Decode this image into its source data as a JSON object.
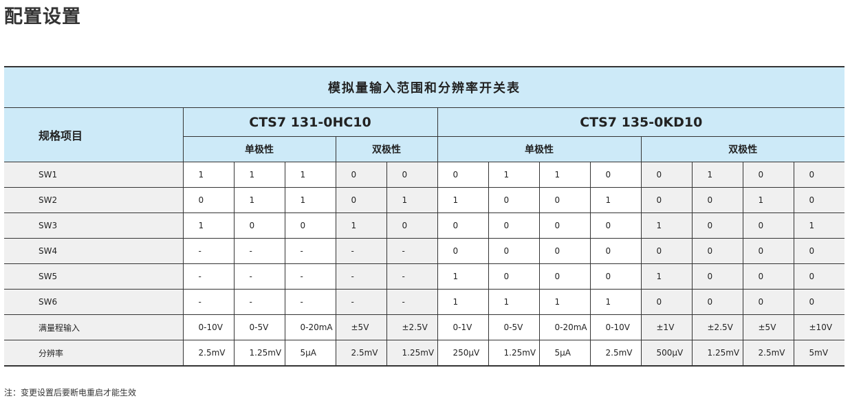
{
  "page_title": "配置设置",
  "table": {
    "title": "模拟量输入范围和分辨率开关表",
    "spec_header": "规格项目",
    "models": [
      "CTS7 131-0HC10",
      "CTS7 135-0KD10"
    ],
    "polarity": [
      "单极性",
      "双极性",
      "单极性",
      "双极性"
    ],
    "rows": [
      {
        "label": "SW1",
        "values": [
          "1",
          "1",
          "1",
          "0",
          "0",
          "0",
          "1",
          "1",
          "0",
          "0",
          "1",
          "0",
          "0"
        ]
      },
      {
        "label": "SW2",
        "values": [
          "0",
          "1",
          "1",
          "0",
          "1",
          "1",
          "0",
          "0",
          "1",
          "0",
          "0",
          "1",
          "0"
        ]
      },
      {
        "label": "SW3",
        "values": [
          "1",
          "0",
          "0",
          "1",
          "0",
          "0",
          "0",
          "0",
          "0",
          "1",
          "0",
          "0",
          "1"
        ]
      },
      {
        "label": "SW4",
        "values": [
          "-",
          "-",
          "-",
          "-",
          "-",
          "0",
          "0",
          "0",
          "0",
          "0",
          "0",
          "0",
          "0"
        ]
      },
      {
        "label": "SW5",
        "values": [
          "-",
          "-",
          "-",
          "-",
          "-",
          "1",
          "0",
          "0",
          "0",
          "1",
          "0",
          "0",
          "0"
        ]
      },
      {
        "label": "SW6",
        "values": [
          "-",
          "-",
          "-",
          "-",
          "-",
          "1",
          "1",
          "1",
          "1",
          "0",
          "0",
          "0",
          "0"
        ]
      },
      {
        "label": "满量程输入",
        "values": [
          "0-10V",
          "0-5V",
          "0-20mA",
          "±5V",
          "±2.5V",
          "0-1V",
          "0-5V",
          "0-20mA",
          "0-10V",
          "±1V",
          "±2.5V",
          "±5V",
          "±10V"
        ]
      },
      {
        "label": "分辨率",
        "values": [
          "2.5mV",
          "1.25mV",
          "5μA",
          "2.5mV",
          "1.25mV",
          "250μV",
          "1.25mV",
          "5μA",
          "2.5mV",
          "500μV",
          "1.25mV",
          "2.5mV",
          "5mV"
        ]
      }
    ]
  },
  "note": "注：变更设置后要断电重启才能生效"
}
